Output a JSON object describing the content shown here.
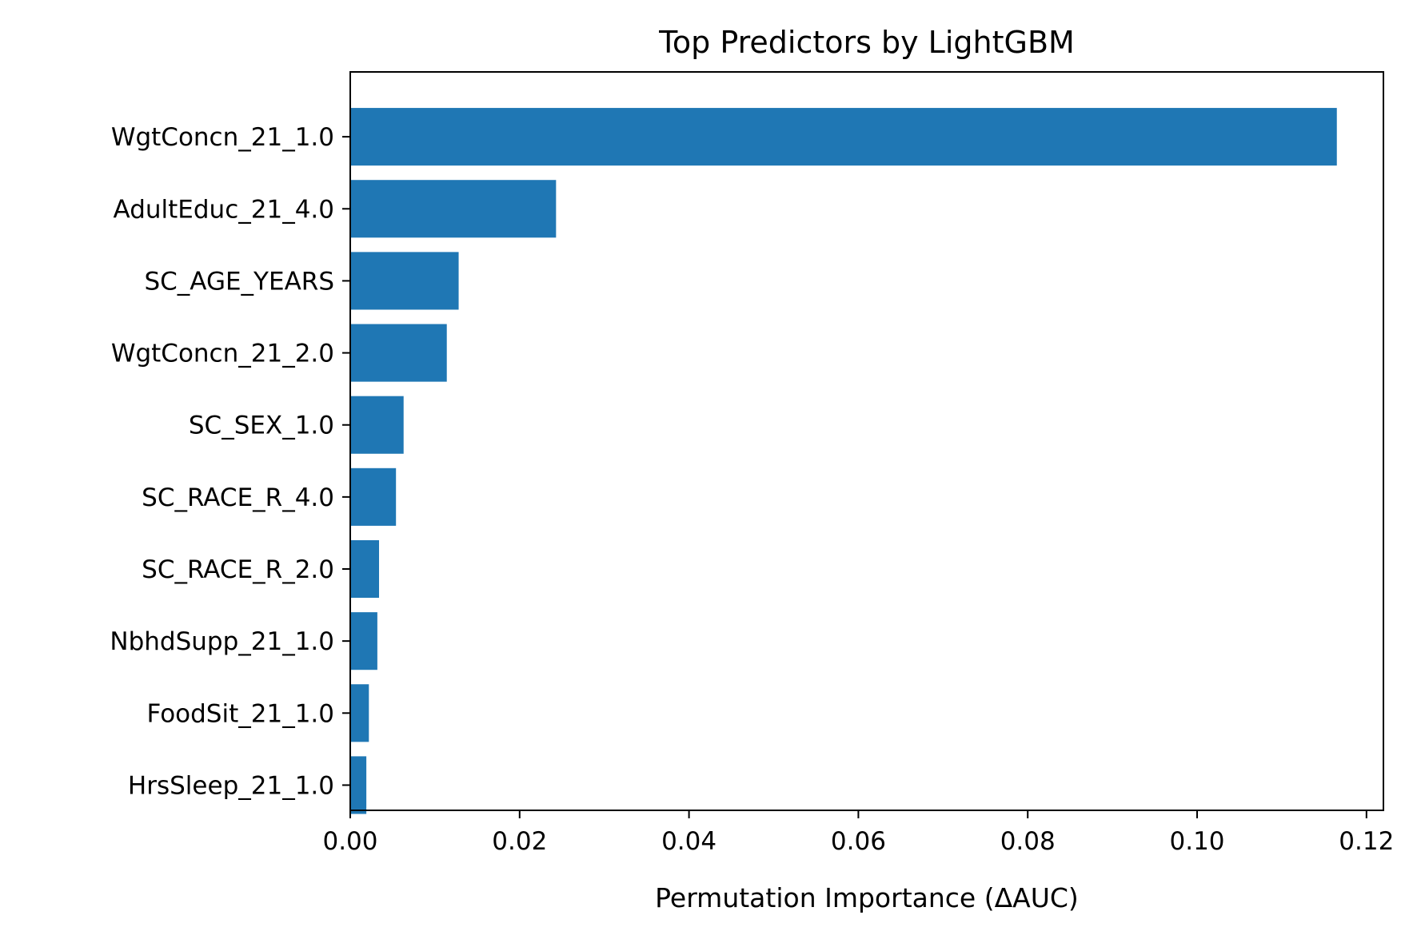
{
  "chart_data": {
    "type": "bar",
    "orientation": "horizontal",
    "title": "Top Predictors by LightGBM",
    "xlabel": "Permutation Importance (ΔAUC)",
    "ylabel": "",
    "xlim": [
      0,
      0.122
    ],
    "xticks": [
      0.0,
      0.02,
      0.04,
      0.06,
      0.08,
      0.1,
      0.12
    ],
    "xtick_labels": [
      "0.00",
      "0.02",
      "0.04",
      "0.06",
      "0.08",
      "0.10",
      "0.12"
    ],
    "grid": false,
    "legend": "none",
    "bar_color": "#1f77b4",
    "categories": [
      "WgtConcn_21_1.0",
      "AdultEduc_21_4.0",
      "SC_AGE_YEARS",
      "WgtConcn_21_2.0",
      "SC_SEX_1.0",
      "SC_RACE_R_4.0",
      "SC_RACE_R_2.0",
      "NbhdSupp_21_1.0",
      "FoodSit_21_1.0",
      "HrsSleep_21_1.0"
    ],
    "values": [
      0.1165,
      0.0243,
      0.0128,
      0.0114,
      0.0063,
      0.0054,
      0.0034,
      0.0032,
      0.0022,
      0.0019
    ]
  }
}
